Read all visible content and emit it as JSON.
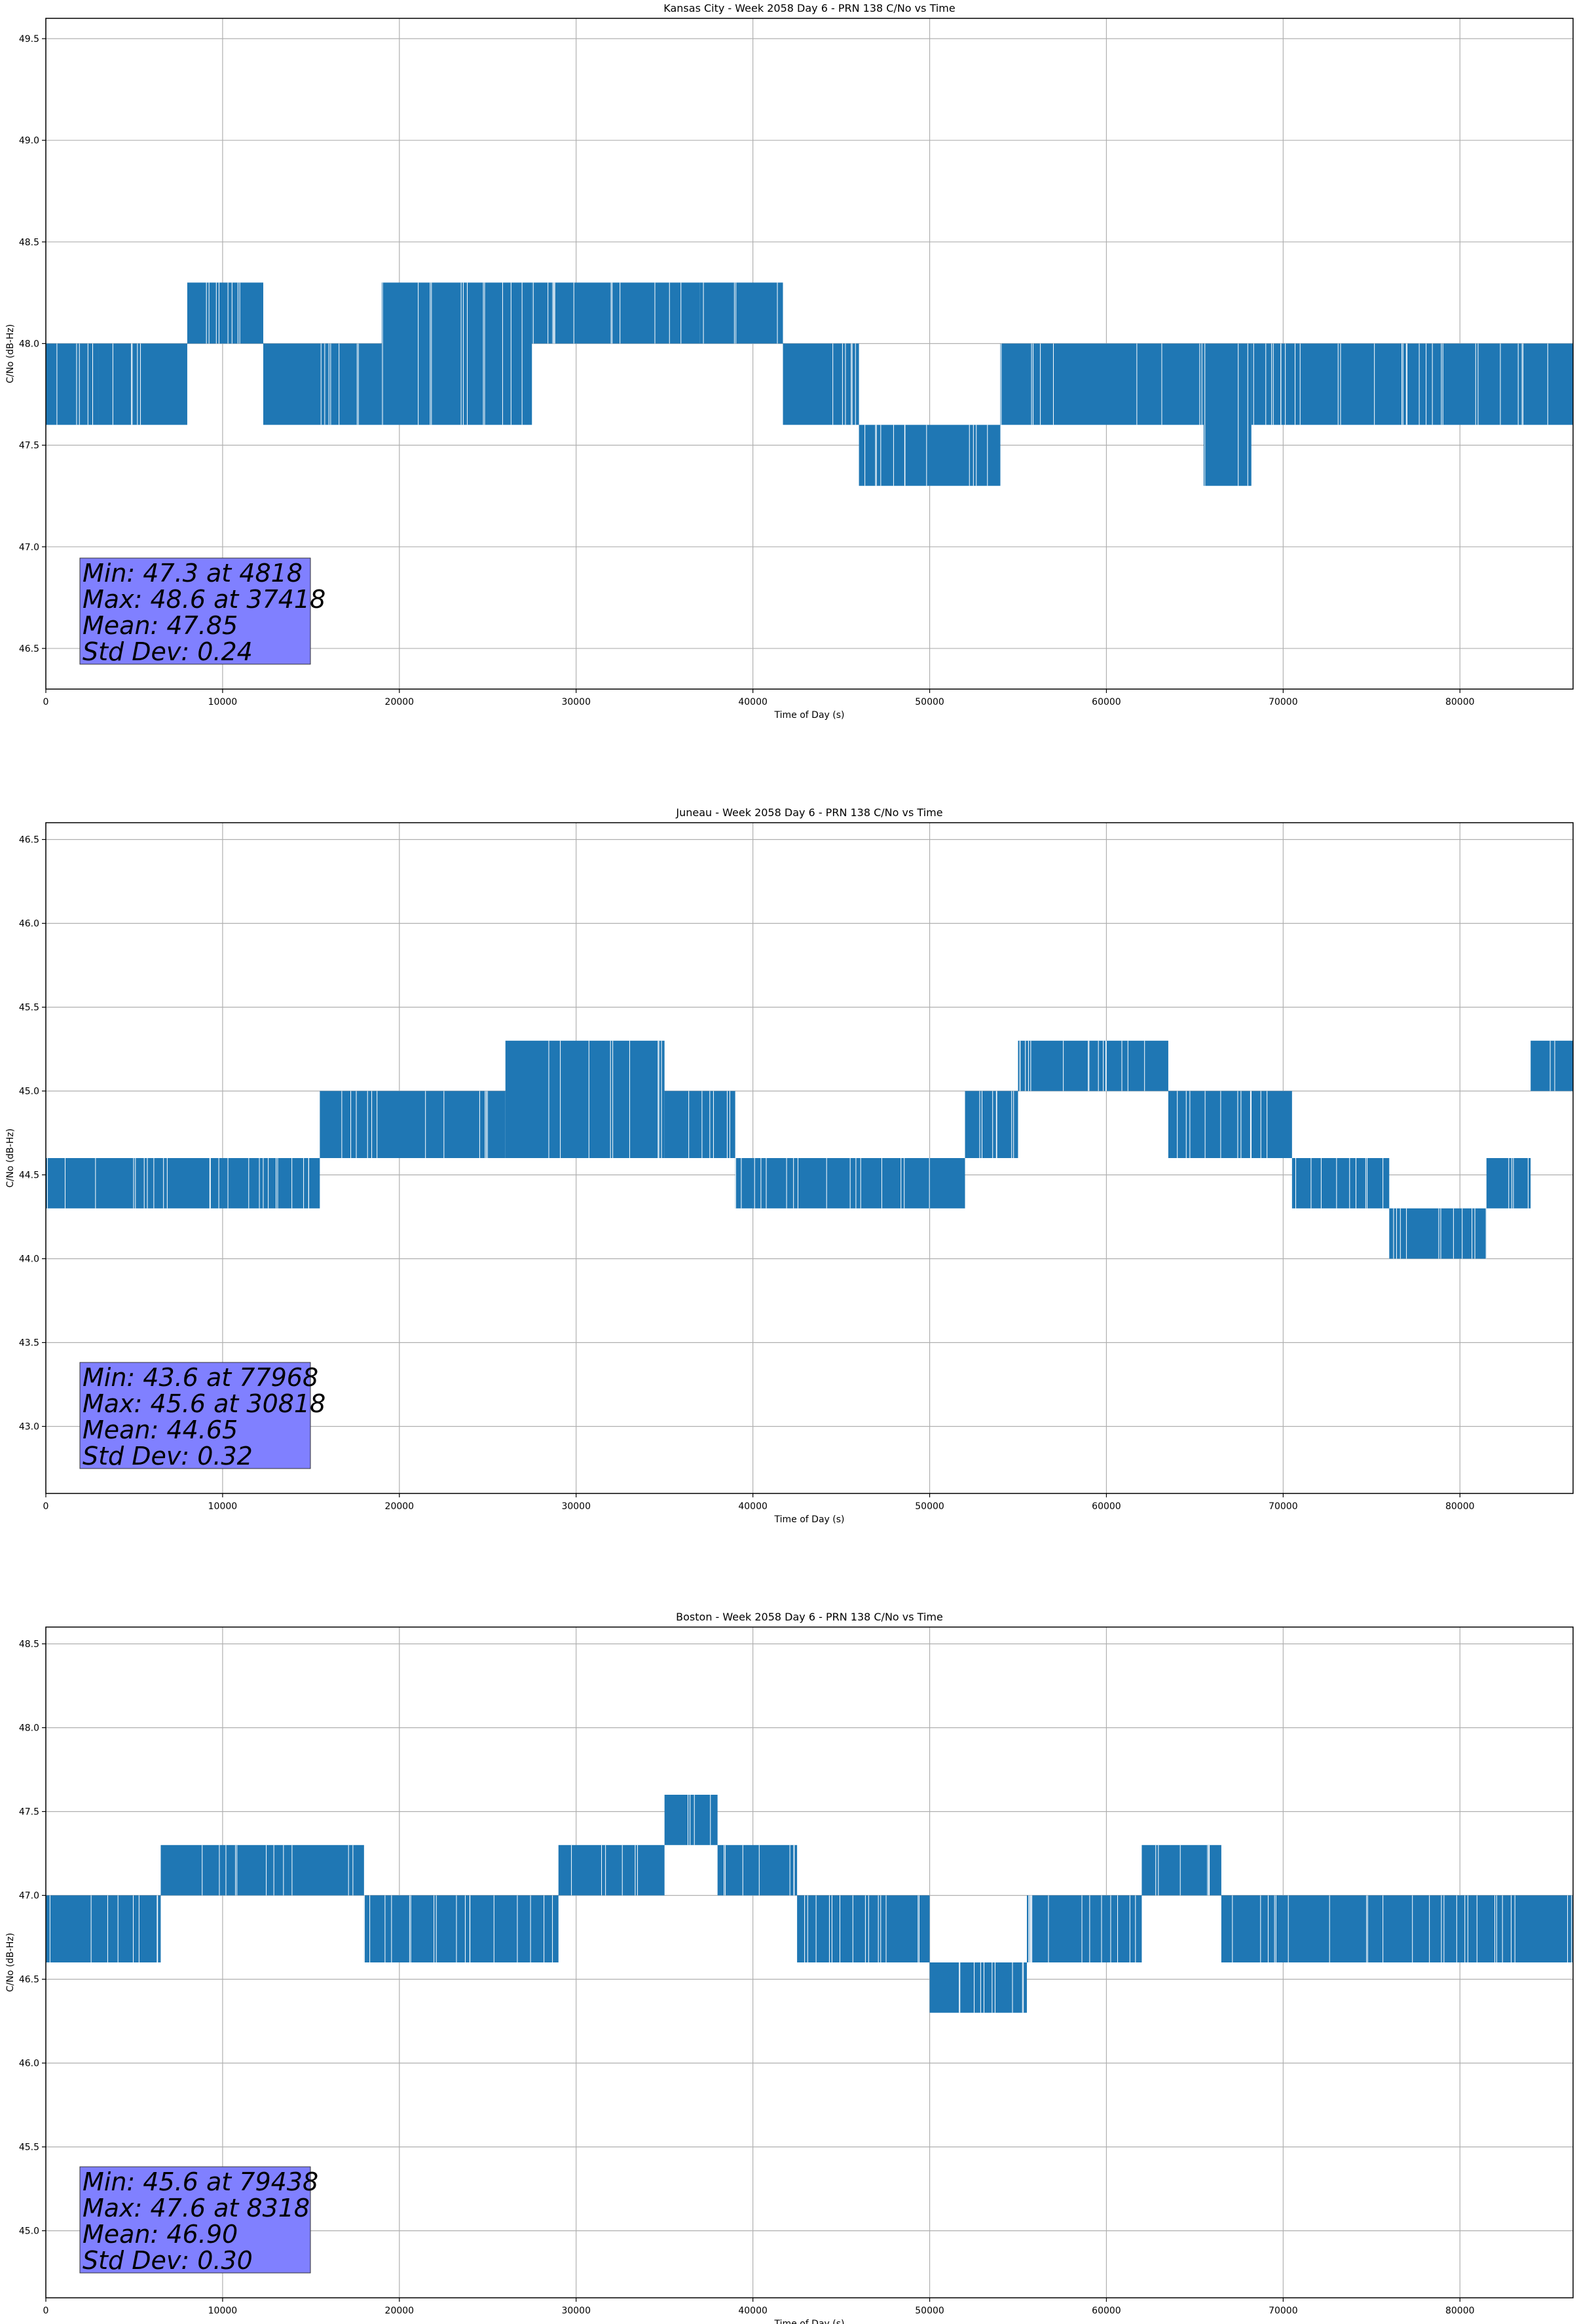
{
  "chart_data": [
    {
      "type": "line",
      "title": "Kansas City - Week 2058 Day 6 - PRN 138 C/No vs Time",
      "xlabel": "Time of Day (s)",
      "ylabel": "C/No (dB-Hz)",
      "xlim": [
        0,
        86400
      ],
      "ylim": [
        46.3,
        49.6
      ],
      "xticks": [
        0,
        10000,
        20000,
        30000,
        40000,
        50000,
        60000,
        70000,
        80000
      ],
      "yticks": [
        46.5,
        47.0,
        47.5,
        48.0,
        48.5,
        49.0,
        49.5
      ],
      "grid": true,
      "series": [
        {
          "color": "#1f77b4",
          "segments": [
            {
              "x0": 0,
              "x1": 3000,
              "levels": [
                47.6,
                48.0
              ]
            },
            {
              "x0": 3000,
              "x1": 8000,
              "levels": [
                47.6,
                48.0
              ]
            },
            {
              "x0": 8000,
              "x1": 12300,
              "levels": [
                48.0,
                48.3
              ]
            },
            {
              "x0": 12300,
              "x1": 19000,
              "levels": [
                47.6,
                48.0
              ]
            },
            {
              "x0": 19000,
              "x1": 27500,
              "levels": [
                47.6,
                48.0,
                48.3
              ]
            },
            {
              "x0": 27500,
              "x1": 37000,
              "levels": [
                48.0,
                48.3
              ]
            },
            {
              "x0": 37000,
              "x1": 41700,
              "levels": [
                48.0,
                48.3
              ]
            },
            {
              "x0": 41700,
              "x1": 46000,
              "levels": [
                47.6,
                48.0
              ]
            },
            {
              "x0": 46000,
              "x1": 54000,
              "levels": [
                47.3,
                47.6
              ]
            },
            {
              "x0": 54000,
              "x1": 65500,
              "levels": [
                47.6,
                48.0
              ]
            },
            {
              "x0": 65500,
              "x1": 68200,
              "levels": [
                47.3,
                47.6,
                48.0
              ]
            },
            {
              "x0": 68200,
              "x1": 86400,
              "levels": [
                47.6,
                48.0
              ]
            }
          ]
        }
      ],
      "annotation": [
        "Min: 47.3 at 4818",
        "Max: 48.6 at 37418",
        "Mean: 47.85",
        "Std Dev: 0.24"
      ],
      "annotation_color": "#8080ff"
    },
    {
      "type": "line",
      "title": "Juneau - Week 2058 Day 6 - PRN 138 C/No vs Time",
      "xlabel": "Time of Day (s)",
      "ylabel": "C/No (dB-Hz)",
      "xlim": [
        0,
        86400
      ],
      "ylim": [
        42.6,
        46.6
      ],
      "xticks": [
        0,
        10000,
        20000,
        30000,
        40000,
        50000,
        60000,
        70000,
        80000
      ],
      "yticks": [
        43.0,
        43.5,
        44.0,
        44.5,
        45.0,
        45.5,
        46.0,
        46.5
      ],
      "grid": true,
      "series": [
        {
          "color": "#1f77b4",
          "segments": [
            {
              "x0": 0,
              "x1": 15500,
              "levels": [
                44.3,
                44.6
              ]
            },
            {
              "x0": 15500,
              "x1": 26000,
              "levels": [
                44.6,
                45.0
              ]
            },
            {
              "x0": 26000,
              "x1": 35000,
              "levels": [
                44.6,
                45.0,
                45.3
              ]
            },
            {
              "x0": 35000,
              "x1": 39000,
              "levels": [
                44.6,
                45.0
              ]
            },
            {
              "x0": 39000,
              "x1": 52000,
              "levels": [
                44.3,
                44.6
              ]
            },
            {
              "x0": 52000,
              "x1": 55000,
              "levels": [
                44.6,
                45.0
              ]
            },
            {
              "x0": 55000,
              "x1": 63500,
              "levels": [
                45.0,
                45.3
              ]
            },
            {
              "x0": 63500,
              "x1": 70500,
              "levels": [
                44.6,
                45.0
              ]
            },
            {
              "x0": 70500,
              "x1": 76000,
              "levels": [
                44.3,
                44.6
              ]
            },
            {
              "x0": 76000,
              "x1": 81500,
              "levels": [
                44.0,
                44.3
              ]
            },
            {
              "x0": 81500,
              "x1": 84000,
              "levels": [
                44.3,
                44.6
              ]
            },
            {
              "x0": 84000,
              "x1": 86400,
              "levels": [
                45.0,
                45.3
              ]
            }
          ]
        }
      ],
      "annotation": [
        "Min: 43.6 at 77968",
        "Max: 45.6 at 30818",
        "Mean: 44.65",
        "Std Dev: 0.32"
      ],
      "annotation_color": "#8080ff"
    },
    {
      "type": "line",
      "title": "Boston - Week 2058 Day 6 - PRN 138 C/No vs Time",
      "xlabel": "Time of Day (s)",
      "ylabel": "C/No (dB-Hz)",
      "xlim": [
        0,
        86400
      ],
      "ylim": [
        44.6,
        48.6
      ],
      "xticks": [
        0,
        10000,
        20000,
        30000,
        40000,
        50000,
        60000,
        70000,
        80000
      ],
      "yticks": [
        45.0,
        45.5,
        46.0,
        46.5,
        47.0,
        47.5,
        48.0,
        48.5
      ],
      "grid": true,
      "series": [
        {
          "color": "#1f77b4",
          "segments": [
            {
              "x0": 0,
              "x1": 6500,
              "levels": [
                46.6,
                47.0
              ]
            },
            {
              "x0": 6500,
              "x1": 18000,
              "levels": [
                47.0,
                47.3
              ]
            },
            {
              "x0": 18000,
              "x1": 29000,
              "levels": [
                46.6,
                47.0
              ]
            },
            {
              "x0": 29000,
              "x1": 35000,
              "levels": [
                47.0,
                47.3
              ]
            },
            {
              "x0": 35000,
              "x1": 38000,
              "levels": [
                47.3,
                47.6
              ]
            },
            {
              "x0": 38000,
              "x1": 42500,
              "levels": [
                47.0,
                47.3
              ]
            },
            {
              "x0": 42500,
              "x1": 50000,
              "levels": [
                46.6,
                47.0
              ]
            },
            {
              "x0": 50000,
              "x1": 54000,
              "levels": [
                46.3,
                46.6
              ]
            },
            {
              "x0": 54000,
              "x1": 55500,
              "levels": [
                46.3,
                46.6
              ]
            },
            {
              "x0": 55500,
              "x1": 62000,
              "levels": [
                46.6,
                47.0
              ]
            },
            {
              "x0": 62000,
              "x1": 66500,
              "levels": [
                47.0,
                47.3
              ]
            },
            {
              "x0": 66500,
              "x1": 86400,
              "levels": [
                46.6,
                47.0
              ]
            }
          ]
        }
      ],
      "annotation": [
        "Min: 45.6 at 79438",
        "Max: 47.6 at 8318",
        "Mean: 46.90",
        "Std Dev: 0.30"
      ],
      "annotation_color": "#8080ff"
    }
  ]
}
